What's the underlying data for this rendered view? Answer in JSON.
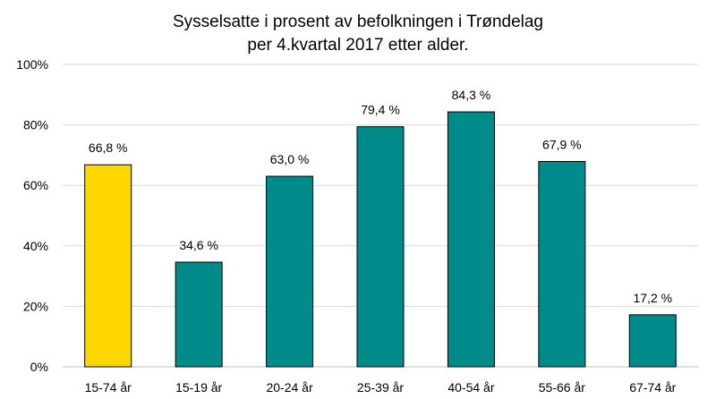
{
  "chart_data": {
    "type": "bar",
    "title_lines": [
      "Sysselsatte i prosent av befolkningen i Trøndelag",
      "per 4.kvartal 2017 etter alder."
    ],
    "categories": [
      "15-74 år",
      "15-19 år",
      "20-24 år",
      "25-39 år",
      "40-54 år",
      "55-66 år",
      "67-74 år"
    ],
    "values": [
      66.8,
      34.6,
      63.0,
      79.4,
      84.3,
      67.9,
      17.2
    ],
    "value_labels": [
      "66,8 %",
      "34,6 %",
      "63,0 %",
      "79,4 %",
      "84,3 %",
      "67,9 %",
      "17,2 %"
    ],
    "yticks": [
      0,
      20,
      40,
      60,
      80,
      100
    ],
    "ytick_labels": [
      "0%",
      "20%",
      "40%",
      "60%",
      "80%",
      "100%"
    ],
    "ylim": [
      0,
      100
    ],
    "grid": true,
    "bar_colors": [
      "#FFD700",
      "#008B8B",
      "#008B8B",
      "#008B8B",
      "#008B8B",
      "#008B8B",
      "#008B8B"
    ],
    "grid_color": "#D9D9D9"
  }
}
